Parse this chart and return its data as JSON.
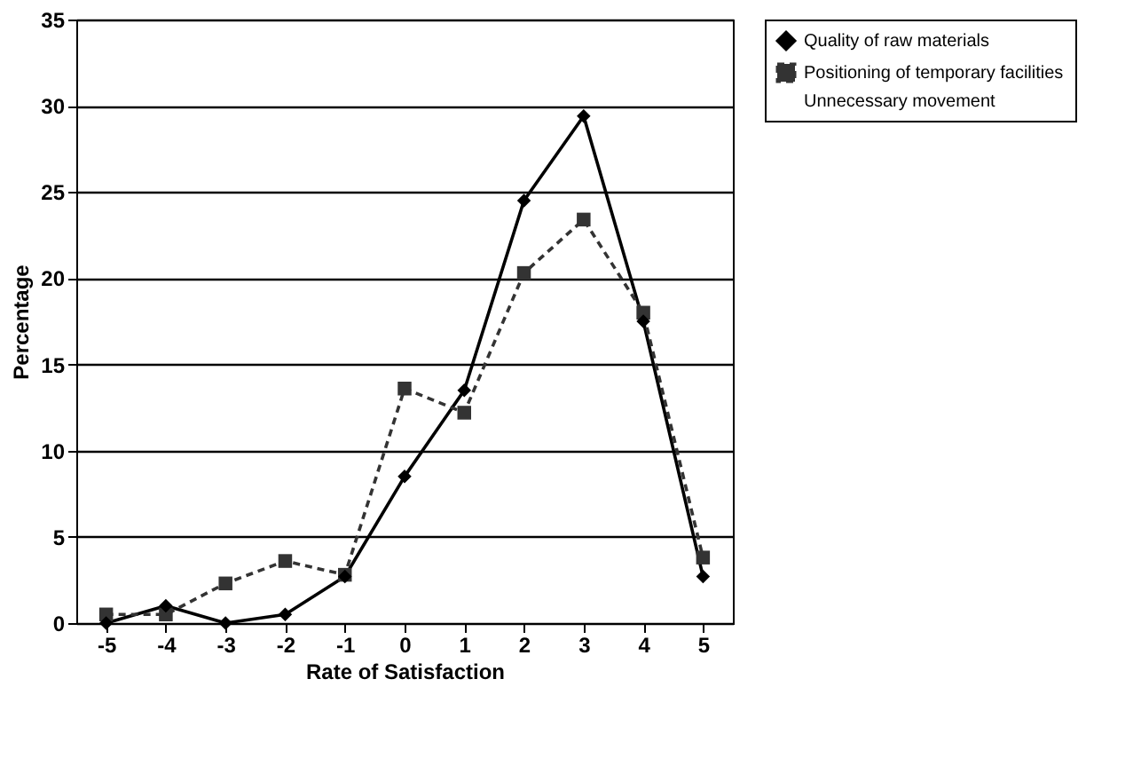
{
  "chart_data": {
    "type": "line",
    "xlabel": "Rate of Satisfaction",
    "ylabel": "Percentage",
    "categories": [
      "-5",
      "-4",
      "-3",
      "-2",
      "-1",
      "0",
      "1",
      "2",
      "3",
      "4",
      "5"
    ],
    "series": [
      {
        "name": "Quality of raw materials",
        "color": "#000000",
        "marker": "diamond",
        "line_style": "solid",
        "values": [
          0,
          1,
          0,
          0.5,
          2.7,
          8.5,
          13.5,
          24.5,
          29.4,
          17.5,
          2.7
        ]
      },
      {
        "name": "Positioning of temporary facilities",
        "color": "#333333",
        "marker": "square",
        "line_style": "dashed",
        "values": [
          0.5,
          0.5,
          2.3,
          3.6,
          2.8,
          13.6,
          12.2,
          20.3,
          23.4,
          18,
          3.8
        ]
      },
      {
        "name": "Unnecessary movement",
        "values": [
          null,
          null,
          null,
          null,
          null,
          null,
          null,
          null,
          null,
          null,
          null
        ]
      }
    ],
    "ylim": [
      0,
      35
    ],
    "yticks": [
      0,
      5,
      10,
      15,
      20,
      25,
      30,
      35
    ],
    "grid": "y",
    "legend": "right"
  }
}
